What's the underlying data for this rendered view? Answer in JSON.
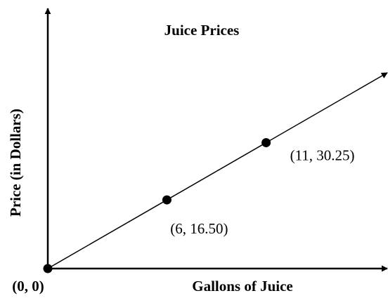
{
  "chart_data": {
    "type": "line",
    "title": "Juice Prices",
    "x_label": "Gallons of Juice",
    "y_label": "Price (in Dollars)",
    "x": [
      0,
      6,
      11
    ],
    "values": [
      0,
      16.5,
      30.25
    ],
    "value_labels": [
      "(0, 0)",
      "(6, 16.50)",
      "(11, 30.25)"
    ],
    "color": "#000000",
    "xlim": [
      0,
      17
    ],
    "ylim": [
      0,
      62
    ],
    "grid": false
  }
}
